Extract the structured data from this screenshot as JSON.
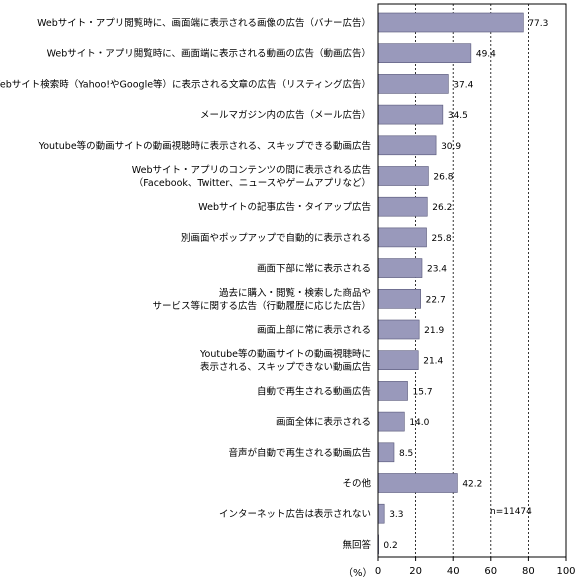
{
  "chart_data": {
    "type": "bar",
    "orientation": "horizontal",
    "categories": [
      [
        "Webサイト・アプリ閲覧時に、画面端に表示される画像の広告（バナー広告）"
      ],
      [
        "Webサイト・アプリ閲覧時に、画面端に表示される動画の広告（動画広告）"
      ],
      [
        "Webサイト検索時（Yahoo!やGoogle等）に表示される文章の広告（リスティング広告）"
      ],
      [
        "メールマガジン内の広告（メール広告）"
      ],
      [
        "Youtube等の動画サイトの動画視聴時に表示される、スキップできる動画広告"
      ],
      [
        "Webサイト・アプリのコンテンツの間に表示される広告",
        "（Facebook、Twitter、ニュースやゲームアプリなど）"
      ],
      [
        "Webサイトの記事広告・タイアップ広告"
      ],
      [
        "別画面やポップアップで自動的に表示される"
      ],
      [
        "画面下部に常に表示される"
      ],
      [
        "過去に購入・閲覧・検索した商品や",
        "サービス等に関する広告（行動履歴に応じた広告）"
      ],
      [
        "画面上部に常に表示される"
      ],
      [
        "Youtube等の動画サイトの動画視聴時に",
        "表示される、スキップできない動画広告"
      ],
      [
        "自動で再生される動画広告"
      ],
      [
        "画面全体に表示される"
      ],
      [
        "音声が自動で再生される動画広告"
      ],
      [
        "その他"
      ],
      [
        "インターネット広告は表示されない"
      ],
      [
        "無回答"
      ]
    ],
    "values": [
      77.3,
      49.4,
      37.4,
      34.5,
      30.9,
      26.8,
      26.2,
      25.8,
      23.4,
      22.7,
      21.9,
      21.4,
      15.7,
      14.0,
      8.5,
      42.2,
      3.3,
      0.2
    ],
    "value_labels": [
      "77.3",
      "49.4",
      "37.4",
      "34.5",
      "30.9",
      "26.8",
      "26.2",
      "25.8",
      "23.4",
      "22.7",
      "21.9",
      "21.4",
      "15.7",
      "14.0",
      "8.5",
      "42.2",
      "3.3",
      "0.2"
    ],
    "xlim": [
      0,
      100
    ],
    "xticks": [
      "0",
      "20",
      "40",
      "60",
      "80",
      "100"
    ],
    "xlabel": "（%）",
    "grid": "vertical dashed lines",
    "bar_color": "#9999bb",
    "bar_border": "#555577",
    "note": "n=11474"
  }
}
